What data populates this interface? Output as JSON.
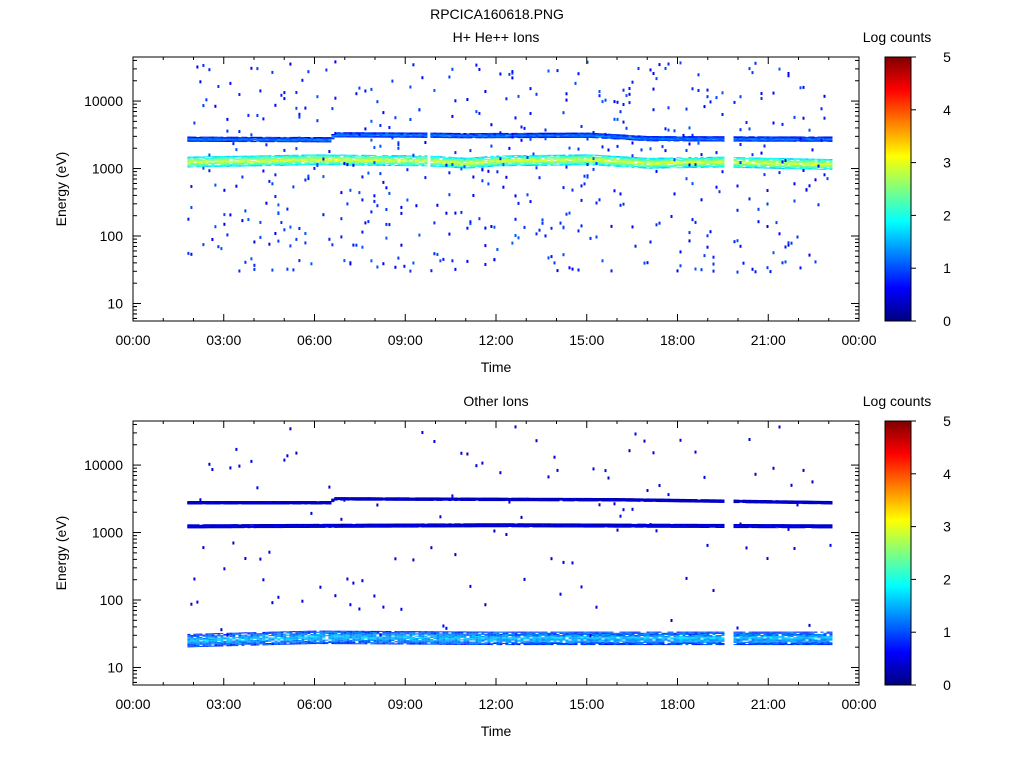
{
  "page_title": "RPCICA160618.PNG",
  "chart_data": [
    {
      "type": "heatmap",
      "title": "H+ He++ Ions",
      "xlabel": "Time",
      "ylabel": "Energy (eV)",
      "x_ticks": [
        "00:00",
        "03:00",
        "06:00",
        "09:00",
        "12:00",
        "15:00",
        "18:00",
        "21:00",
        "00:00"
      ],
      "x_range_hours": [
        0,
        24
      ],
      "y_scale": "log",
      "y_range": [
        5.5,
        45000
      ],
      "y_ticks": [
        10,
        100,
        1000,
        10000
      ],
      "y_tick_labels": [
        "10",
        "100",
        "1000",
        "10000"
      ],
      "data_span_hours": [
        1.8,
        23.1
      ],
      "gaps_hours": [
        [
          9.7,
          9.8
        ],
        [
          19.5,
          19.8
        ]
      ],
      "bands": [
        {
          "center_eV": 1250,
          "half_width_decades": 0.08,
          "level": 3.0,
          "drift": [
            [
              1.8,
              1250
            ],
            [
              4.0,
              1300
            ],
            [
              6.0,
              1350
            ],
            [
              9.7,
              1300
            ],
            [
              11.0,
              1200
            ],
            [
              12.0,
              1300
            ],
            [
              15.0,
              1350
            ],
            [
              17.0,
              1200
            ],
            [
              19.5,
              1250
            ],
            [
              21.0,
              1200
            ],
            [
              23.1,
              1150
            ]
          ]
        },
        {
          "center_eV": 2900,
          "half_width_decades": 0.035,
          "level": 1.3,
          "drift": [
            [
              1.8,
              2750
            ],
            [
              6.5,
              2700
            ],
            [
              6.6,
              3200
            ],
            [
              9.7,
              3150
            ],
            [
              11.0,
              3100
            ],
            [
              15.0,
              3150
            ],
            [
              17.0,
              2800
            ],
            [
              23.1,
              2750
            ]
          ]
        }
      ],
      "scatter_level": 0.9,
      "colorbar": {
        "label": "Log counts",
        "min": 0,
        "max": 5,
        "ticks": [
          "0",
          "1",
          "2",
          "3",
          "4",
          "5"
        ]
      }
    },
    {
      "type": "heatmap",
      "title": "Other Ions",
      "xlabel": "Time",
      "ylabel": "Energy (eV)",
      "x_ticks": [
        "00:00",
        "03:00",
        "06:00",
        "09:00",
        "12:00",
        "15:00",
        "18:00",
        "21:00",
        "00:00"
      ],
      "x_range_hours": [
        0,
        24
      ],
      "y_scale": "log",
      "y_range": [
        5.5,
        45000
      ],
      "y_ticks": [
        10,
        100,
        1000,
        10000
      ],
      "y_tick_labels": [
        "10",
        "100",
        "1000",
        "10000"
      ],
      "data_span_hours": [
        1.8,
        23.1
      ],
      "gaps_hours": [
        [
          19.5,
          19.8
        ]
      ],
      "bands": [
        {
          "center_eV": 25,
          "half_width_decades": 0.1,
          "level": 1.6,
          "drift": [
            [
              1.8,
              25
            ],
            [
              6.0,
              28
            ],
            [
              12.0,
              27
            ],
            [
              18.0,
              27
            ],
            [
              23.1,
              27
            ]
          ]
        },
        {
          "center_eV": 1250,
          "half_width_decades": 0.025,
          "level": 0.55,
          "drift": [
            [
              1.8,
              1250
            ],
            [
              12.0,
              1300
            ],
            [
              23.1,
              1250
            ]
          ]
        },
        {
          "center_eV": 3000,
          "half_width_decades": 0.02,
          "level": 0.45,
          "drift": [
            [
              1.8,
              2800
            ],
            [
              6.5,
              2800
            ],
            [
              6.6,
              3200
            ],
            [
              16.0,
              3100
            ],
            [
              23.1,
              2800
            ]
          ]
        }
      ],
      "scatter_level": 0.5,
      "colorbar": {
        "label": "Log counts",
        "min": 0,
        "max": 5,
        "ticks": [
          "0",
          "1",
          "2",
          "3",
          "4",
          "5"
        ]
      }
    }
  ]
}
